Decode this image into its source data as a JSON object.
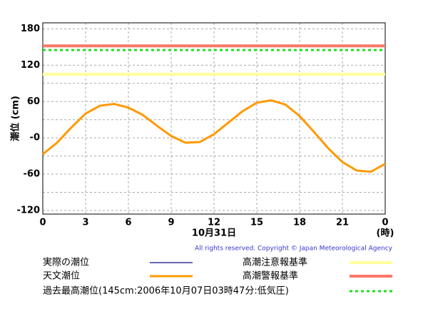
{
  "chart_data": {
    "type": "line",
    "ylabel": "潮位 (cm)",
    "xlabel": "10月31日",
    "xunit": "(時)",
    "copyright": "All rights reserved. Copyright © Japan Meteorological Agency",
    "x": [
      0,
      1,
      2,
      3,
      4,
      5,
      6,
      7,
      8,
      9,
      10,
      11,
      12,
      13,
      14,
      15,
      16,
      17,
      18,
      19,
      20,
      21,
      22,
      23,
      24
    ],
    "series": [
      {
        "name": "実際の潮位",
        "color": "#333399",
        "values": [
          null,
          null,
          null,
          null,
          null,
          null,
          null,
          null,
          null,
          null,
          null,
          null,
          null,
          null,
          null,
          null,
          null,
          null,
          null,
          null,
          null,
          null,
          null,
          null,
          null
        ]
      },
      {
        "name": "天文潮位",
        "color": "#ff9900",
        "values": [
          -27,
          -8,
          17,
          40,
          53,
          56,
          50,
          38,
          20,
          3,
          -8,
          -7,
          6,
          25,
          44,
          58,
          62,
          55,
          36,
          10,
          -17,
          -40,
          -54,
          -56,
          -43
        ]
      }
    ],
    "reference_lines": [
      {
        "name": "高潮注意報基準",
        "value": 105,
        "color": "#ffff99",
        "style": "solid"
      },
      {
        "name": "高潮警報基準",
        "value": 152,
        "color": "#ff7766",
        "style": "solid"
      },
      {
        "name": "過去最高潮位(145cm:2006年10月07日03時47分:低気圧)",
        "value": 145,
        "color": "#22dd22",
        "style": "dotted"
      }
    ],
    "xlim": [
      0,
      24
    ],
    "xticks": [
      0,
      3,
      6,
      9,
      12,
      15,
      18,
      21,
      {
        "value": 24,
        "label": "0"
      }
    ],
    "ylim": [
      -126,
      190
    ],
    "yticks": [
      180,
      120,
      60,
      {
        "value": 0,
        "label": "-0"
      },
      -60,
      -120
    ],
    "minor_yticks": [
      150,
      90,
      30,
      -30,
      -90
    ],
    "grid": true
  }
}
